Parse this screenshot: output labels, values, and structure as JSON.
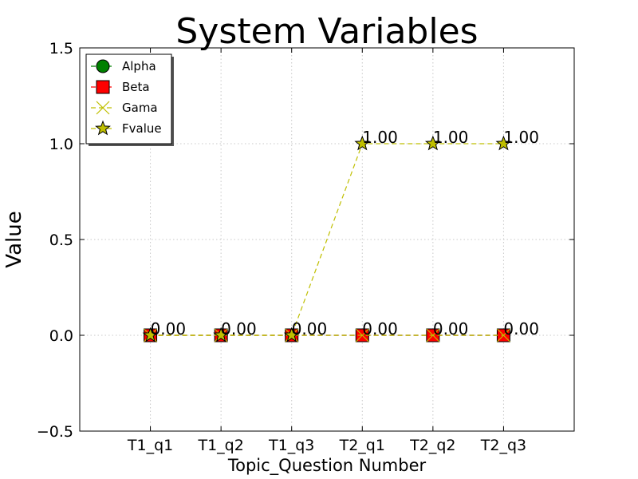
{
  "chart_data": {
    "type": "line",
    "title": "System Variables",
    "xlabel": "Topic_Question Number",
    "ylabel": "Value",
    "categories": [
      "T1_q1",
      "T1_q2",
      "T1_q3",
      "T2_q1",
      "T2_q2",
      "T2_q3"
    ],
    "ylim": [
      -0.5,
      1.5
    ],
    "yticks": [
      "−0.5",
      "0.0",
      "0.5",
      "1.0",
      "1.5"
    ],
    "ytick_values": [
      -0.5,
      0.0,
      0.5,
      1.0,
      1.5
    ],
    "grid": true,
    "legend_position": "top-left",
    "series": [
      {
        "name": "Alpha",
        "values": [
          0,
          0,
          0,
          0,
          0,
          0
        ],
        "marker": "circle",
        "color": "#008000",
        "line": "dashed"
      },
      {
        "name": "Beta",
        "values": [
          0,
          0,
          0,
          0,
          0,
          0
        ],
        "marker": "square",
        "color": "#ff0000",
        "line": "dashed"
      },
      {
        "name": "Gama",
        "values": [
          0,
          0,
          0,
          0,
          0,
          0
        ],
        "marker": "x",
        "color": "#bfbf00",
        "line": "dashed"
      },
      {
        "name": "Fvalue",
        "values": [
          0,
          0,
          0,
          1,
          1,
          1
        ],
        "marker": "star",
        "color": "#bfbf00",
        "line": "dashed"
      }
    ],
    "data_labels": [
      {
        "x_index": 0,
        "y": 0,
        "text": "0.00"
      },
      {
        "x_index": 1,
        "y": 0,
        "text": "0.00"
      },
      {
        "x_index": 2,
        "y": 0,
        "text": "0.00"
      },
      {
        "x_index": 3,
        "y": 0,
        "text": "0.00"
      },
      {
        "x_index": 4,
        "y": 0,
        "text": "0.00"
      },
      {
        "x_index": 5,
        "y": 0,
        "text": "0.00"
      },
      {
        "x_index": 3,
        "y": 1,
        "text": "1.00"
      },
      {
        "x_index": 4,
        "y": 1,
        "text": "1.00"
      },
      {
        "x_index": 5,
        "y": 1,
        "text": "1.00"
      }
    ]
  }
}
